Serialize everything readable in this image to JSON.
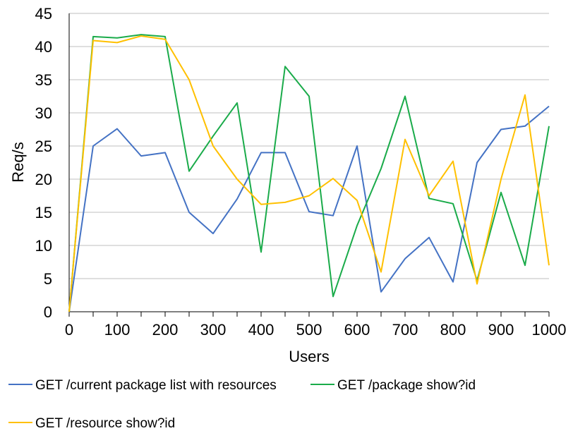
{
  "chart_data": {
    "type": "line",
    "xlabel": "Users",
    "ylabel": "Req/s",
    "xlim": [
      0,
      1000
    ],
    "ylim": [
      0,
      45
    ],
    "x_ticks": [
      0,
      100,
      200,
      300,
      400,
      500,
      600,
      700,
      800,
      900,
      1000
    ],
    "y_ticks": [
      0,
      5,
      10,
      15,
      20,
      25,
      30,
      35,
      40,
      45
    ],
    "grid": "horizontal",
    "legend_position": "bottom",
    "x": [
      0,
      50,
      100,
      150,
      200,
      250,
      300,
      350,
      400,
      450,
      500,
      550,
      600,
      650,
      700,
      750,
      800,
      850,
      900,
      950,
      1000
    ],
    "series": [
      {
        "name": "GET /current package list with resources",
        "color": "#4472C4",
        "values": [
          0,
          25,
          27.6,
          23.5,
          24,
          15,
          11.8,
          17,
          24,
          24,
          15.1,
          14.5,
          25,
          3,
          8,
          11.2,
          4.5,
          22.5,
          27.5,
          28,
          31
        ]
      },
      {
        "name": "GET /package show?id",
        "color": "#1AAB4A",
        "values": [
          0,
          41.5,
          41.3,
          41.8,
          41.5,
          21.2,
          26.5,
          31.5,
          9,
          37,
          32.5,
          2.3,
          13,
          21.6,
          32.5,
          17.1,
          16.3,
          4.7,
          18,
          7,
          28
        ]
      },
      {
        "name": "GET /resource show?id",
        "color": "#FFC000",
        "values": [
          0,
          40.9,
          40.6,
          41.6,
          41.1,
          35,
          25,
          20,
          16.2,
          16.5,
          17.5,
          20.1,
          16.8,
          6,
          26,
          17.5,
          22.7,
          4.2,
          20,
          32.7,
          7
        ]
      }
    ]
  }
}
